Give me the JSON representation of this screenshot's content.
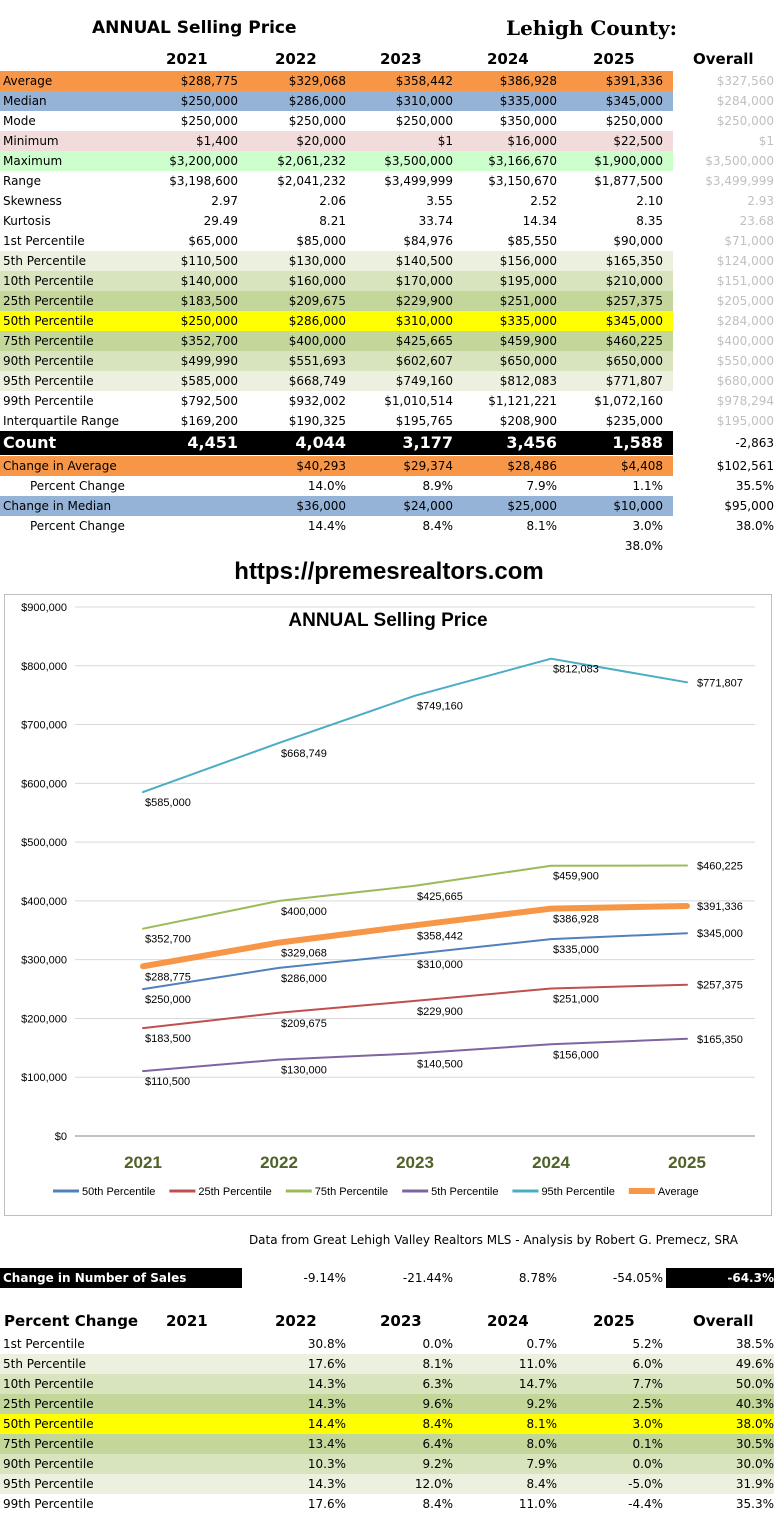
{
  "top": {
    "title": "ANNUAL Selling Price",
    "county": "Lehigh County:",
    "years": [
      "2021",
      "2022",
      "2023",
      "2024",
      "2025"
    ],
    "overall_label": "Overall"
  },
  "colors": {
    "orange": "#f79646",
    "blue": "#95b3d7",
    "pink": "#f2dcdb",
    "green": "#ccffcc",
    "lightgreen": "#ebf1de",
    "midgreen": "#d7e4bd",
    "darkgreen": "#c4d79b",
    "yellow": "#ffff00",
    "black": "#000000"
  },
  "stats_rows": [
    {
      "label": "Average",
      "values": [
        "$288,775",
        "$329,068",
        "$358,442",
        "$386,928",
        "$391,336"
      ],
      "overall": "$327,560",
      "bg": "orange"
    },
    {
      "label": "Median",
      "values": [
        "$250,000",
        "$286,000",
        "$310,000",
        "$335,000",
        "$345,000"
      ],
      "overall": "$284,000",
      "bg": "blue"
    },
    {
      "label": "Mode",
      "values": [
        "$250,000",
        "$250,000",
        "$250,000",
        "$350,000",
        "$250,000"
      ],
      "overall": "$250,000",
      "bg": ""
    },
    {
      "label": "Minimum",
      "values": [
        "$1,400",
        "$20,000",
        "$1",
        "$16,000",
        "$22,500"
      ],
      "overall": "$1",
      "bg": "pink"
    },
    {
      "label": "Maximum",
      "values": [
        "$3,200,000",
        "$2,061,232",
        "$3,500,000",
        "$3,166,670",
        "$1,900,000"
      ],
      "overall": "$3,500,000",
      "bg": "green"
    },
    {
      "label": "Range",
      "values": [
        "$3,198,600",
        "$2,041,232",
        "$3,499,999",
        "$3,150,670",
        "$1,877,500"
      ],
      "overall": "$3,499,999",
      "bg": ""
    },
    {
      "label": "Skewness",
      "values": [
        "2.97",
        "2.06",
        "3.55",
        "2.52",
        "2.10"
      ],
      "overall": "2.93",
      "bg": ""
    },
    {
      "label": "Kurtosis",
      "values": [
        "29.49",
        "8.21",
        "33.74",
        "14.34",
        "8.35"
      ],
      "overall": "23.68",
      "bg": ""
    },
    {
      "label": "1st Percentile",
      "values": [
        "$65,000",
        "$85,000",
        "$84,976",
        "$85,550",
        "$90,000"
      ],
      "overall": "$71,000",
      "bg": ""
    },
    {
      "label": "5th Percentile",
      "values": [
        "$110,500",
        "$130,000",
        "$140,500",
        "$156,000",
        "$165,350"
      ],
      "overall": "$124,000",
      "bg": "lightgreen"
    },
    {
      "label": "10th Percentile",
      "values": [
        "$140,000",
        "$160,000",
        "$170,000",
        "$195,000",
        "$210,000"
      ],
      "overall": "$151,000",
      "bg": "midgreen"
    },
    {
      "label": "25th Percentile",
      "values": [
        "$183,500",
        "$209,675",
        "$229,900",
        "$251,000",
        "$257,375"
      ],
      "overall": "$205,000",
      "bg": "darkgreen"
    },
    {
      "label": "50th Percentile",
      "values": [
        "$250,000",
        "$286,000",
        "$310,000",
        "$335,000",
        "$345,000"
      ],
      "overall": "$284,000",
      "bg": "yellow"
    },
    {
      "label": "75th Percentile",
      "values": [
        "$352,700",
        "$400,000",
        "$425,665",
        "$459,900",
        "$460,225"
      ],
      "overall": "$400,000",
      "bg": "darkgreen"
    },
    {
      "label": "90th Percentile",
      "values": [
        "$499,990",
        "$551,693",
        "$602,607",
        "$650,000",
        "$650,000"
      ],
      "overall": "$550,000",
      "bg": "midgreen"
    },
    {
      "label": "95th Percentile",
      "values": [
        "$585,000",
        "$668,749",
        "$749,160",
        "$812,083",
        "$771,807"
      ],
      "overall": "$680,000",
      "bg": "lightgreen"
    },
    {
      "label": "99th Percentile",
      "values": [
        "$792,500",
        "$932,002",
        "$1,010,514",
        "$1,121,221",
        "$1,072,160"
      ],
      "overall": "$978,294",
      "bg": ""
    },
    {
      "label": "Interquartile Range",
      "values": [
        "$169,200",
        "$190,325",
        "$195,765",
        "$208,900",
        "$235,000"
      ],
      "overall": "$195,000",
      "bg": ""
    }
  ],
  "count_row": {
    "label": "Count",
    "values": [
      "4,451",
      "4,044",
      "3,177",
      "3,456",
      "1,588"
    ],
    "overall": "-2,863"
  },
  "change_rows": [
    {
      "label": "Change in Average",
      "values": [
        "",
        "$40,293",
        "$29,374",
        "$28,486",
        "$4,408"
      ],
      "overall": "$102,561",
      "bg": "orange"
    },
    {
      "label": "Percent Change",
      "values": [
        "",
        "14.0%",
        "8.9%",
        "7.9%",
        "1.1%"
      ],
      "overall": "35.5%",
      "bg": "",
      "indent": true
    },
    {
      "label": "Change in Median",
      "values": [
        "",
        "$36,000",
        "$24,000",
        "$25,000",
        "$10,000"
      ],
      "overall": "$95,000",
      "bg": "blue"
    },
    {
      "label": "Percent Change",
      "values": [
        "",
        "14.4%",
        "8.4%",
        "8.1%",
        "3.0%"
      ],
      "overall": "38.0%",
      "bg": "",
      "indent": true
    }
  ],
  "extra_value": "38.0%",
  "website": "https://premesrealtors.com",
  "chart_data": {
    "type": "line",
    "title": "ANNUAL Selling Price",
    "categories": [
      "2021",
      "2022",
      "2023",
      "2024",
      "2025"
    ],
    "ylim": [
      0,
      900000
    ],
    "yticks": [
      "$0",
      "$100,000",
      "$200,000",
      "$300,000",
      "$400,000",
      "$500,000",
      "$600,000",
      "$700,000",
      "$800,000",
      "$900,000"
    ],
    "grid": true,
    "legend_position": "bottom",
    "series": [
      {
        "name": "50th Percentile",
        "color": "#4f81bd",
        "width": 2,
        "values": [
          250000,
          286000,
          310000,
          335000,
          345000
        ],
        "labels": [
          "$250,000",
          "$286,000",
          "$310,000",
          "$335,000",
          "$345,000"
        ]
      },
      {
        "name": "25th Percentile",
        "color": "#c0504d",
        "width": 2,
        "values": [
          183500,
          209675,
          229900,
          251000,
          257375
        ],
        "labels": [
          "$183,500",
          "$209,675",
          "$229,900",
          "$251,000",
          "$257,375"
        ]
      },
      {
        "name": "75th Percentile",
        "color": "#9bbb59",
        "width": 2,
        "values": [
          352700,
          400000,
          425665,
          459900,
          460225
        ],
        "labels": [
          "$352,700",
          "$400,000",
          "$425,665",
          "$459,900",
          "$460,225"
        ]
      },
      {
        "name": "5th Percentile",
        "color": "#8064a2",
        "width": 2,
        "values": [
          110500,
          130000,
          140500,
          156000,
          165350
        ],
        "labels": [
          "$110,500",
          "$130,000",
          "$140,500",
          "$156,000",
          "$165,350"
        ]
      },
      {
        "name": "95th Percentile",
        "color": "#4bacc6",
        "width": 2,
        "values": [
          585000,
          668749,
          749160,
          812083,
          771807
        ],
        "labels": [
          "$585,000",
          "$668,749",
          "$749,160",
          "$812,083",
          "$771,807"
        ]
      },
      {
        "name": "Average",
        "color": "#f79646",
        "width": 6,
        "values": [
          288775,
          329068,
          358442,
          386928,
          391336
        ],
        "labels": [
          "$288,775",
          "$329,068",
          "$358,442",
          "$386,928",
          "$391,336"
        ]
      }
    ]
  },
  "credit": "Data from Great Lehigh Valley Realtors MLS - Analysis by Robert G. Premecz, SRA",
  "sales_change": {
    "label": "Change in Number of Sales",
    "values": [
      "-9.14%",
      "-21.44%",
      "8.78%",
      "-54.05%"
    ],
    "overall": "-64.3%"
  },
  "pct_table": {
    "title": "Percent Change",
    "years": [
      "2021",
      "2022",
      "2023",
      "2024",
      "2025"
    ],
    "overall_label": "Overall",
    "rows": [
      {
        "label": "1st Percentile",
        "values": [
          "30.8%",
          "0.0%",
          "0.7%",
          "5.2%"
        ],
        "overall": "38.5%",
        "bg": ""
      },
      {
        "label": "5th Percentile",
        "values": [
          "17.6%",
          "8.1%",
          "11.0%",
          "6.0%"
        ],
        "overall": "49.6%",
        "bg": "lightgreen"
      },
      {
        "label": "10th Percentile",
        "values": [
          "14.3%",
          "6.3%",
          "14.7%",
          "7.7%"
        ],
        "overall": "50.0%",
        "bg": "midgreen"
      },
      {
        "label": "25th Percentile",
        "values": [
          "14.3%",
          "9.6%",
          "9.2%",
          "2.5%"
        ],
        "overall": "40.3%",
        "bg": "darkgreen"
      },
      {
        "label": "50th Percentile",
        "values": [
          "14.4%",
          "8.4%",
          "8.1%",
          "3.0%"
        ],
        "overall": "38.0%",
        "bg": "yellow"
      },
      {
        "label": "75th Percentile",
        "values": [
          "13.4%",
          "6.4%",
          "8.0%",
          "0.1%"
        ],
        "overall": "30.5%",
        "bg": "darkgreen"
      },
      {
        "label": "90th Percentile",
        "values": [
          "10.3%",
          "9.2%",
          "7.9%",
          "0.0%"
        ],
        "overall": "30.0%",
        "bg": "midgreen"
      },
      {
        "label": "95th Percentile",
        "values": [
          "14.3%",
          "12.0%",
          "8.4%",
          "-5.0%"
        ],
        "overall": "31.9%",
        "bg": "lightgreen"
      },
      {
        "label": "99th Percentile",
        "values": [
          "17.6%",
          "8.4%",
          "11.0%",
          "-4.4%"
        ],
        "overall": "35.3%",
        "bg": ""
      }
    ]
  }
}
